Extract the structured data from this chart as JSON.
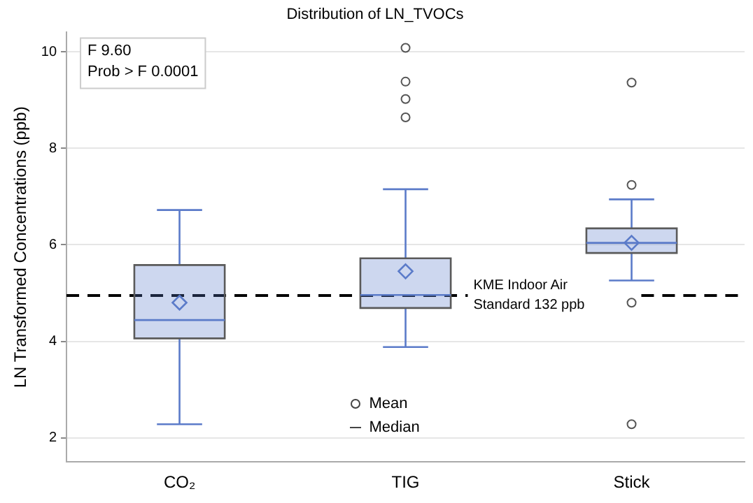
{
  "chart_data": {
    "type": "box",
    "title": "Distribution of LN_TVOCs",
    "ylabel": "LN Transformed Concentrations (ppb)",
    "categories": [
      "CO₂",
      "TIG",
      "Stick"
    ],
    "series": [
      {
        "color": "#5b7bc9",
        "boxes": [
          {
            "low": 2.28,
            "q1": 4.06,
            "median": 4.44,
            "q3": 5.58,
            "high": 6.72,
            "mean": 4.8
          },
          {
            "low": 3.88,
            "q1": 4.69,
            "median": 4.96,
            "q3": 5.72,
            "high": 7.15,
            "mean": 5.45,
            "outliers": [
              8.64,
              9.02,
              9.38,
              10.08
            ]
          },
          {
            "low": 5.26,
            "q1": 5.83,
            "median": 6.04,
            "q3": 6.34,
            "high": 6.94,
            "mean": 6.04,
            "outliers": [
              2.28,
              4.8,
              7.24,
              9.36
            ]
          }
        ]
      }
    ],
    "ylim": [
      1.5,
      10.4
    ],
    "yticks": [
      2,
      4,
      6,
      8,
      10
    ],
    "grid": "y",
    "legend": "bottom",
    "ref_lines": [
      {
        "axis": "y",
        "value": 4.95,
        "label": "KME Indoor Air Standard 132 ppb",
        "line_style": "dashed",
        "color": "#000000"
      }
    ],
    "annotations": [
      "F 9.60",
      "Prob > F 0.0001",
      "Mean",
      "Median"
    ]
  }
}
